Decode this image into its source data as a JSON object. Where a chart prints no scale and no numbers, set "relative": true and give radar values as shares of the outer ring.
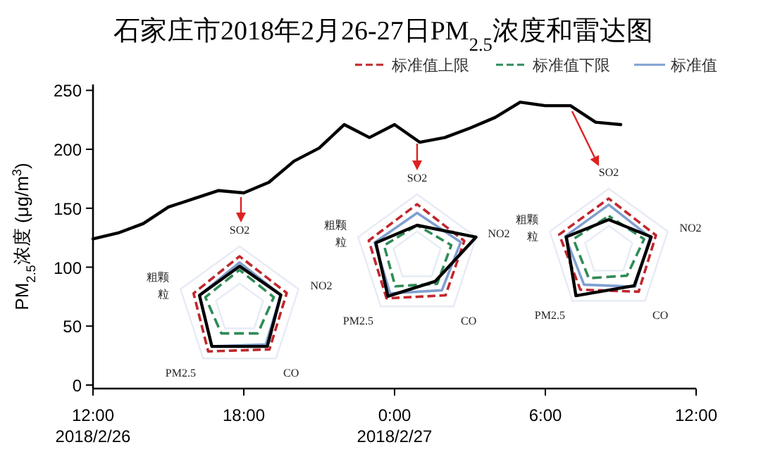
{
  "chart_data": [
    {
      "type": "line",
      "title": "石家庄市2018年2月26-27日PM$_{2.5}$浓度和雷达图",
      "ylabel": "PM$_{2.5}$浓度 (μg/m$^{3}$)",
      "x": [
        "2018-02-26T12:00",
        "2018-02-26T13:00",
        "2018-02-26T14:00",
        "2018-02-26T15:00",
        "2018-02-26T16:00",
        "2018-02-26T17:00",
        "2018-02-26T18:00",
        "2018-02-26T19:00",
        "2018-02-26T20:00",
        "2018-02-26T21:00",
        "2018-02-26T22:00",
        "2018-02-26T23:00",
        "2018-02-27T00:00",
        "2018-02-27T01:00",
        "2018-02-27T02:00",
        "2018-02-27T03:00",
        "2018-02-27T04:00",
        "2018-02-27T05:00",
        "2018-02-27T06:00",
        "2018-02-27T07:00",
        "2018-02-27T08:00",
        "2018-02-27T09:00"
      ],
      "series": [
        {
          "color": "#000000",
          "values": [
            124,
            129,
            137,
            151,
            158,
            165,
            163,
            172,
            190,
            201,
            221,
            210,
            221,
            206,
            210,
            218,
            227,
            240,
            237,
            237,
            223,
            221
          ]
        }
      ],
      "xlim": [
        "2018-02-26T12:00",
        "2018-02-27T12:00"
      ],
      "xticks": [
        {
          "value": "2018-02-26T12:00",
          "label": "12:00\n2018/2/26"
        },
        {
          "value": "2018-02-26T18:00",
          "label": "18:00"
        },
        {
          "value": "2018-02-27T00:00",
          "label": "0:00\n2018/2/27"
        },
        {
          "value": "2018-02-27T06:00",
          "label": "6:00"
        },
        {
          "value": "2018-02-27T12:00",
          "label": "12:00"
        }
      ],
      "ylim": [
        -3,
        255
      ],
      "yticks": [
        0,
        50,
        100,
        150,
        200,
        250
      ],
      "grid": false,
      "legend": false,
      "marker": "none",
      "line_style": "solid"
    },
    {
      "type": "radar",
      "categories": [
        "SO2",
        "NO2",
        "CO",
        "PM2.5",
        "粗颗粒"
      ],
      "relative": true,
      "legend": "top right",
      "series": [
        {
          "name": "标准值上限",
          "color": "#c0272d",
          "line_style": "dashed",
          "values": [
            0.84,
            0.8,
            0.82,
            0.86,
            0.78
          ]
        },
        {
          "name": "标准值下限",
          "color": "#2e8b57",
          "line_style": "dashed",
          "values": [
            0.62,
            0.58,
            0.5,
            0.5,
            0.58
          ]
        },
        {
          "name": "标准值",
          "color": "#7f9fd0",
          "line_style": "solid",
          "values": [
            0.74,
            0.7,
            0.72,
            0.76,
            0.68
          ]
        },
        {
          "color": "#000000",
          "line_style": "solid",
          "values": [
            0.68,
            0.7,
            0.76,
            0.76,
            0.68
          ]
        }
      ]
    },
    {
      "type": "radar",
      "categories": [
        "SO2",
        "NO2",
        "CO",
        "PM2.5",
        "粗颗粒"
      ],
      "relative": true,
      "series": [
        {
          "color": "#c0272d",
          "line_style": "dashed",
          "values": [
            0.84,
            0.8,
            0.78,
            0.84,
            0.82
          ]
        },
        {
          "color": "#2e8b57",
          "line_style": "dashed",
          "values": [
            0.5,
            0.58,
            0.55,
            0.6,
            0.56
          ]
        },
        {
          "color": "#7f9fd0",
          "line_style": "solid",
          "values": [
            0.7,
            0.74,
            0.68,
            0.74,
            0.72
          ]
        },
        {
          "color": "#000000",
          "line_style": "solid",
          "values": [
            0.5,
            1.0,
            0.5,
            0.8,
            0.7
          ]
        }
      ]
    },
    {
      "type": "radar",
      "categories": [
        "SO2",
        "NO2",
        "CO",
        "PM2.5",
        "粗颗粒"
      ],
      "relative": true,
      "series": [
        {
          "color": "#c0272d",
          "line_style": "dashed",
          "values": [
            0.84,
            0.8,
            0.82,
            0.78,
            0.84
          ]
        },
        {
          "color": "#2e8b57",
          "line_style": "dashed",
          "values": [
            0.56,
            0.6,
            0.5,
            0.55,
            0.6
          ]
        },
        {
          "color": "#7f9fd0",
          "line_style": "solid",
          "values": [
            0.74,
            0.7,
            0.72,
            0.68,
            0.74
          ]
        },
        {
          "color": "#000000",
          "line_style": "solid",
          "values": [
            0.5,
            0.72,
            0.7,
            0.9,
            0.72
          ]
        }
      ]
    }
  ]
}
